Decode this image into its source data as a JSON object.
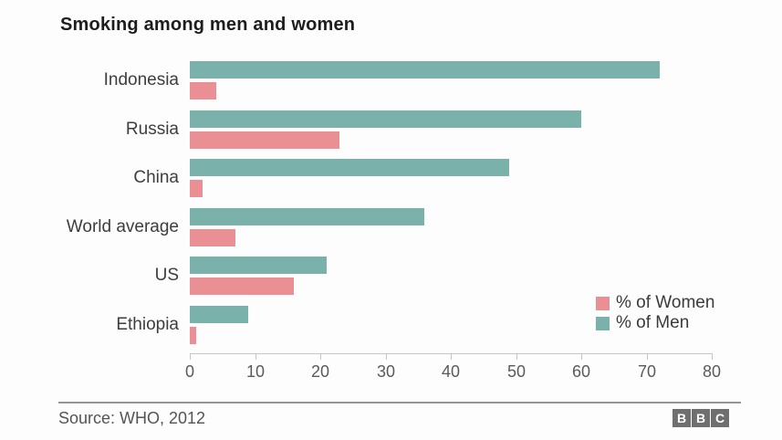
{
  "chart_data": {
    "type": "bar",
    "orientation": "horizontal",
    "title": "Smoking among men and women",
    "categories": [
      "Indonesia",
      "Russia",
      "China",
      "World average",
      "US",
      "Ethiopia"
    ],
    "series": [
      {
        "name": "% of Men",
        "key": "men",
        "color": "#7ab1ab",
        "values": [
          72,
          60,
          49,
          36,
          21,
          9
        ]
      },
      {
        "name": "% of Women",
        "key": "women",
        "color": "#ea9094",
        "values": [
          4,
          23,
          2,
          7,
          16,
          1
        ]
      }
    ],
    "legend_order": [
      "% of Women",
      "% of Men"
    ],
    "legend_position": "bottom-right",
    "xlabel": "",
    "ylabel": "",
    "xlim": [
      0,
      80
    ],
    "x_ticks": [
      0,
      10,
      20,
      30,
      40,
      50,
      60,
      70,
      80
    ],
    "grid": false
  },
  "footer": {
    "source": "Source: WHO, 2012",
    "logo_blocks": [
      "B",
      "B",
      "C"
    ]
  }
}
